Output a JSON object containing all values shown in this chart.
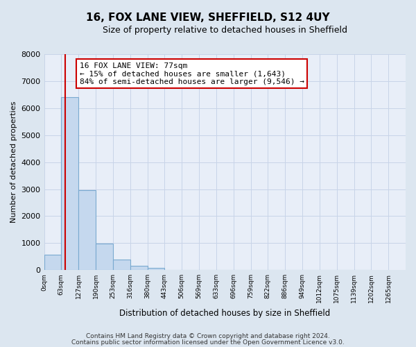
{
  "title": "16, FOX LANE VIEW, SHEFFIELD, S12 4UY",
  "subtitle": "Size of property relative to detached houses in Sheffield",
  "bar_values": [
    560,
    6400,
    2950,
    980,
    380,
    170,
    90,
    0,
    0,
    0,
    0,
    0,
    0,
    0,
    0,
    0,
    0,
    0,
    0
  ],
  "bin_labels": [
    "0sqm",
    "63sqm",
    "127sqm",
    "190sqm",
    "253sqm",
    "316sqm",
    "380sqm",
    "443sqm",
    "506sqm",
    "569sqm",
    "633sqm",
    "696sqm",
    "759sqm",
    "822sqm",
    "886sqm",
    "949sqm",
    "1012sqm",
    "1075sqm",
    "1139sqm",
    "1202sqm",
    "1265sqm"
  ],
  "bar_color": "#c5d8ee",
  "bar_edge_color": "#7aaad0",
  "property_line_x": 77,
  "property_line_color": "#cc0000",
  "bin_width": 63,
  "ylim": [
    0,
    8000
  ],
  "yticks": [
    0,
    1000,
    2000,
    3000,
    4000,
    5000,
    6000,
    7000,
    8000
  ],
  "ylabel": "Number of detached properties",
  "xlabel": "Distribution of detached houses by size in Sheffield",
  "annotation_title": "16 FOX LANE VIEW: 77sqm",
  "annotation_line1": "← 15% of detached houses are smaller (1,643)",
  "annotation_line2": "84% of semi-detached houses are larger (9,546) →",
  "annotation_box_color": "#ffffff",
  "annotation_box_edge_color": "#cc0000",
  "footer_line1": "Contains HM Land Registry data © Crown copyright and database right 2024.",
  "footer_line2": "Contains public sector information licensed under the Open Government Licence v3.0.",
  "grid_color": "#c8d4e8",
  "bg_color": "#dce6f0",
  "plot_bg_color": "#e8eef8",
  "title_fontsize": 11,
  "subtitle_fontsize": 9,
  "ylabel_fontsize": 8,
  "xlabel_fontsize": 8.5,
  "ytick_fontsize": 8,
  "xtick_fontsize": 6.5,
  "annotation_fontsize": 8,
  "footer_fontsize": 6.5
}
